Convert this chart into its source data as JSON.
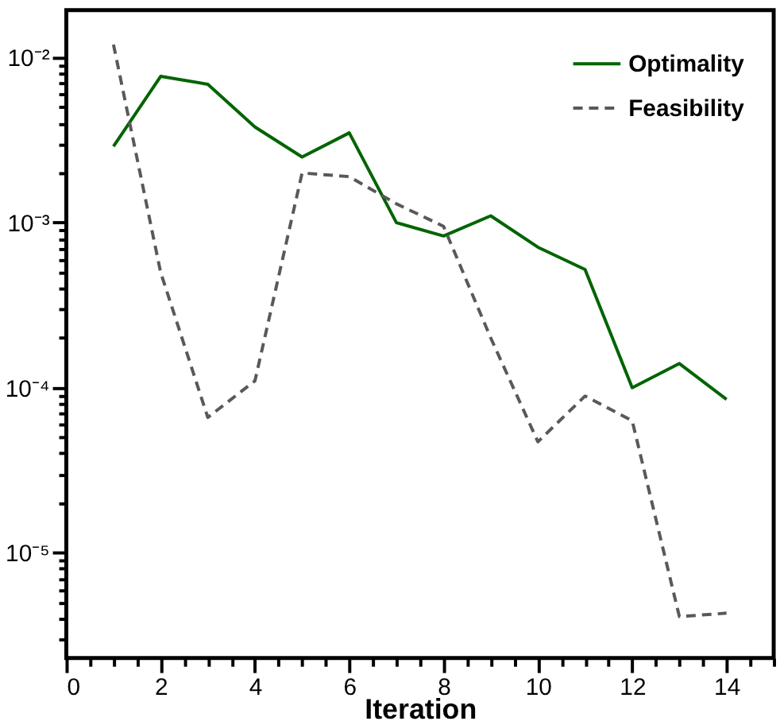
{
  "chart_data": {
    "type": "line",
    "xlabel": "Iteration",
    "log": "y",
    "grid": false,
    "legend": "top right",
    "marker": "none",
    "xlim": [
      0,
      15
    ],
    "ylim": [
      2.3e-06,
      0.0194
    ],
    "xticks": [
      0,
      {
        "value": 0.5,
        "label": null
      },
      {
        "value": 1,
        "label": null
      },
      {
        "value": 1.5,
        "label": null
      },
      2,
      {
        "value": 2.5,
        "label": null
      },
      {
        "value": 3,
        "label": null
      },
      {
        "value": 3.5,
        "label": null
      },
      4,
      {
        "value": 4.5,
        "label": null
      },
      {
        "value": 5,
        "label": null
      },
      {
        "value": 5.5,
        "label": null
      },
      6,
      {
        "value": 6.5,
        "label": null
      },
      {
        "value": 7,
        "label": null
      },
      {
        "value": 7.5,
        "label": null
      },
      8,
      {
        "value": 8.5,
        "label": null
      },
      {
        "value": 9,
        "label": null
      },
      {
        "value": 9.5,
        "label": null
      },
      10,
      {
        "value": 10.5,
        "label": null
      },
      {
        "value": 11,
        "label": null
      },
      {
        "value": 11.5,
        "label": null
      },
      12,
      {
        "value": 12.5,
        "label": null
      },
      {
        "value": 13,
        "label": null
      },
      {
        "value": 13.5,
        "label": null
      },
      14,
      {
        "value": 14.5,
        "label": null
      },
      {
        "value": 15,
        "label": null
      }
    ],
    "yticks": [
      {
        "value": 3e-06,
        "label": null
      },
      {
        "value": 4e-06,
        "label": null
      },
      {
        "value": 5e-06,
        "label": null
      },
      {
        "value": 6e-06,
        "label": null
      },
      {
        "value": 7e-06,
        "label": null
      },
      {
        "value": 8e-06,
        "label": null
      },
      {
        "value": 9e-06,
        "label": null
      },
      {
        "value": 1e-05,
        "label": "10⁻⁵"
      },
      {
        "value": 2e-05,
        "label": null
      },
      {
        "value": 3e-05,
        "label": null
      },
      {
        "value": 4e-05,
        "label": null
      },
      {
        "value": 5e-05,
        "label": null
      },
      {
        "value": 6e-05,
        "label": null
      },
      {
        "value": 7e-05,
        "label": null
      },
      {
        "value": 8e-05,
        "label": null
      },
      {
        "value": 9e-05,
        "label": null
      },
      {
        "value": 0.0001,
        "label": "10⁻⁴"
      },
      {
        "value": 0.0002,
        "label": null
      },
      {
        "value": 0.0003,
        "label": null
      },
      {
        "value": 0.0004,
        "label": null
      },
      {
        "value": 0.0005,
        "label": null
      },
      {
        "value": 0.0006,
        "label": null
      },
      {
        "value": 0.0007,
        "label": null
      },
      {
        "value": 0.0008,
        "label": null
      },
      {
        "value": 0.0009,
        "label": null
      },
      {
        "value": 0.001,
        "label": "10⁻³"
      },
      {
        "value": 0.002,
        "label": null
      },
      {
        "value": 0.003,
        "label": null
      },
      {
        "value": 0.004,
        "label": null
      },
      {
        "value": 0.005,
        "label": null
      },
      {
        "value": 0.006,
        "label": null
      },
      {
        "value": 0.007,
        "label": null
      },
      {
        "value": 0.008,
        "label": null
      },
      {
        "value": 0.009,
        "label": null
      },
      {
        "value": 0.01,
        "label": "10⁻²"
      }
    ],
    "x": [
      1,
      2,
      3,
      4,
      5,
      6,
      7,
      8,
      9,
      10,
      11,
      12,
      13,
      14
    ],
    "series": [
      {
        "name": "Optimality",
        "color": "#006400",
        "line_style": "solid",
        "values": [
          0.0029,
          0.0077,
          0.0069,
          0.0038,
          0.0025,
          0.0035,
          0.001,
          0.00083,
          0.0011,
          0.00071,
          0.00052,
          0.0001,
          0.00014,
          8.5e-05
        ]
      },
      {
        "name": "Feasibility",
        "color": "#595959",
        "line_style": "dashed",
        "values": [
          0.012,
          0.0005,
          6.6e-05,
          0.00011,
          0.002,
          0.0019,
          0.0013,
          0.00095,
          0.0002,
          4.7e-05,
          8.9e-05,
          6.3e-05,
          4.1e-06,
          4.3e-06
        ]
      }
    ]
  }
}
